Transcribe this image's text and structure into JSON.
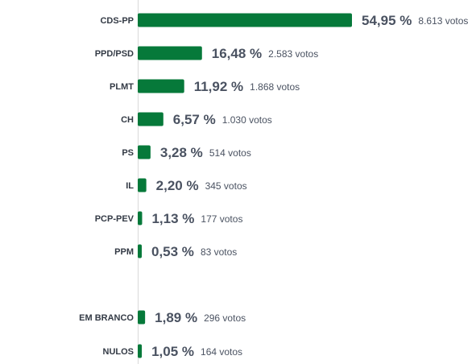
{
  "chart_data": {
    "type": "bar",
    "orientation": "horizontal",
    "bar_color": "#06793a",
    "axis_color": "#d9d9d9",
    "text_color": "#4a5261",
    "votes_unit": "votos",
    "categories": [
      "CDS-PP",
      "PPD/PSD",
      "PLMT",
      "CH",
      "PS",
      "IL",
      "PCP-PEV",
      "PPM",
      "EM BRANCO",
      "NULOS"
    ],
    "percent_labels": [
      "54,95 %",
      "16,48 %",
      "11,92 %",
      "6,57 %",
      "3,28 %",
      "2,20 %",
      "1,13 %",
      "0,53 %",
      "1,89 %",
      "1,05 %"
    ],
    "values": [
      54.95,
      16.48,
      11.92,
      6.57,
      3.28,
      2.2,
      1.13,
      0.53,
      1.89,
      1.05
    ],
    "votes": [
      "8.613",
      "2.583",
      "1.868",
      "1.030",
      "514",
      "345",
      "177",
      "83",
      "296",
      "164"
    ]
  }
}
